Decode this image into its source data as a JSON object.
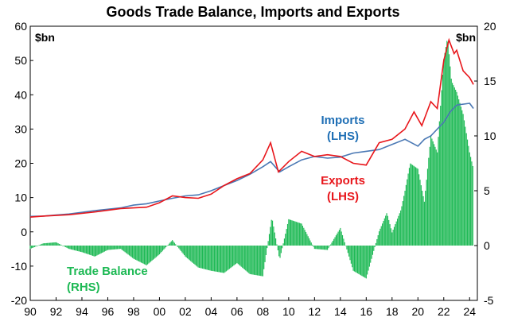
{
  "chart_data": {
    "type": "line",
    "title": "Goods Trade Balance, Imports and Exports",
    "left_unit": "$bn",
    "right_unit": "$bn",
    "x_range": [
      1990,
      2024.6
    ],
    "x_ticks": [
      1990,
      1992,
      1994,
      1996,
      1998,
      2000,
      2002,
      2004,
      2006,
      2008,
      2010,
      2012,
      2014,
      2016,
      2018,
      2020,
      2022,
      2024
    ],
    "x_tick_labels": [
      "90",
      "92",
      "94",
      "96",
      "98",
      "00",
      "02",
      "04",
      "06",
      "08",
      "10",
      "12",
      "14",
      "16",
      "18",
      "20",
      "22",
      "24"
    ],
    "y_left": {
      "min": -20,
      "max": 60,
      "ticks": [
        -20,
        -10,
        0,
        10,
        20,
        30,
        40,
        50,
        60
      ],
      "labels": [
        "-20",
        "-10",
        "0",
        "10",
        "20",
        "30",
        "40",
        "50",
        "60"
      ]
    },
    "y_right": {
      "min": -5,
      "max": 20,
      "ticks": [
        -5,
        0,
        5,
        10,
        15,
        20
      ],
      "labels": [
        "-5",
        "0",
        "5",
        "10",
        "15",
        "20"
      ]
    },
    "grid": false,
    "colors": {
      "imports": "#4a78b4",
      "exports": "#e8161b",
      "trade_balance": "#1db954"
    },
    "annotations": {
      "imports": [
        "Imports",
        "(LHS)"
      ],
      "exports": [
        "Exports",
        "(LHS)"
      ],
      "trade_balance": [
        "Trade Balance",
        "(RHS)"
      ]
    },
    "series": [
      {
        "name": "Imports",
        "axis": "left",
        "kind": "line",
        "x": [
          1990,
          1991,
          1992,
          1993,
          1994,
          1995,
          1996,
          1997,
          1998,
          1999,
          2000,
          2001,
          2002,
          2003,
          2004,
          2005,
          2006,
          2007,
          2008,
          2008.6,
          2009.3,
          2010,
          2011,
          2012,
          2013,
          2014,
          2015,
          2016,
          2017,
          2018,
          2019,
          2020,
          2020.5,
          2021,
          2022,
          2022.5,
          2023,
          2024,
          2024.3
        ],
        "values": [
          4.5,
          4.6,
          4.9,
          5.2,
          5.7,
          6.2,
          6.6,
          7.0,
          7.8,
          8.2,
          9.0,
          9.8,
          10.5,
          10.8,
          12.0,
          13.5,
          15.0,
          16.8,
          19.0,
          20.5,
          17.5,
          19.0,
          21.0,
          22.0,
          21.5,
          21.8,
          23.0,
          23.5,
          24.0,
          25.5,
          27.0,
          25.0,
          27.0,
          28.0,
          32.0,
          35.0,
          37.0,
          37.5,
          36.0
        ]
      },
      {
        "name": "Exports",
        "axis": "left",
        "kind": "line",
        "x": [
          1990,
          1991,
          1992,
          1993,
          1994,
          1995,
          1996,
          1997,
          1998,
          1999,
          2000,
          2001,
          2002,
          2003,
          2004,
          2005,
          2006,
          2007,
          2008,
          2008.6,
          2009.2,
          2010,
          2011,
          2012,
          2013,
          2014,
          2015,
          2016,
          2017,
          2018,
          2019,
          2019.7,
          2020.3,
          2021,
          2021.5,
          2022,
          2022.4,
          2022.8,
          2023,
          2023.5,
          2024,
          2024.3
        ],
        "values": [
          4.3,
          4.6,
          4.8,
          5.0,
          5.4,
          5.8,
          6.3,
          6.8,
          7.0,
          7.2,
          8.5,
          10.5,
          10.0,
          9.8,
          11.0,
          13.5,
          15.5,
          17.0,
          21.0,
          26.0,
          17.5,
          20.5,
          23.5,
          22.0,
          22.5,
          22.0,
          20.0,
          19.5,
          26.0,
          27.0,
          30.0,
          35.0,
          31.0,
          38.0,
          36.0,
          50.0,
          56.0,
          52.0,
          53.0,
          47.0,
          45.0,
          43.0
        ]
      },
      {
        "name": "Trade Balance",
        "axis": "right",
        "kind": "bar",
        "x": [
          1990,
          1991,
          1992,
          1993,
          1994,
          1995,
          1996,
          1997,
          1998,
          1999,
          2000,
          2001,
          2002,
          2003,
          2004,
          2005,
          2006,
          2007,
          2008,
          2008.7,
          2009.3,
          2010,
          2011,
          2012,
          2013,
          2014,
          2015,
          2016,
          2017,
          2017.6,
          2018,
          2018.7,
          2019,
          2019.4,
          2020,
          2020.5,
          2021,
          2021.5,
          2022,
          2022.3,
          2022.6,
          2023,
          2023.5,
          2024,
          2024.3
        ],
        "values": [
          -0.3,
          0.2,
          0.3,
          -0.3,
          -0.6,
          -1.0,
          -0.4,
          -0.3,
          -1.2,
          -1.8,
          -0.8,
          0.5,
          -1.0,
          -2.0,
          -2.3,
          -2.5,
          -1.6,
          -2.6,
          -2.8,
          2.6,
          -1.3,
          2.4,
          2.0,
          -0.3,
          -0.4,
          1.6,
          -2.3,
          -3.0,
          1.3,
          3.0,
          1.2,
          3.3,
          5.0,
          7.5,
          7.0,
          4.0,
          10.0,
          8.5,
          17.0,
          19.0,
          15.0,
          14.0,
          12.0,
          8.5,
          7.0
        ]
      }
    ]
  }
}
